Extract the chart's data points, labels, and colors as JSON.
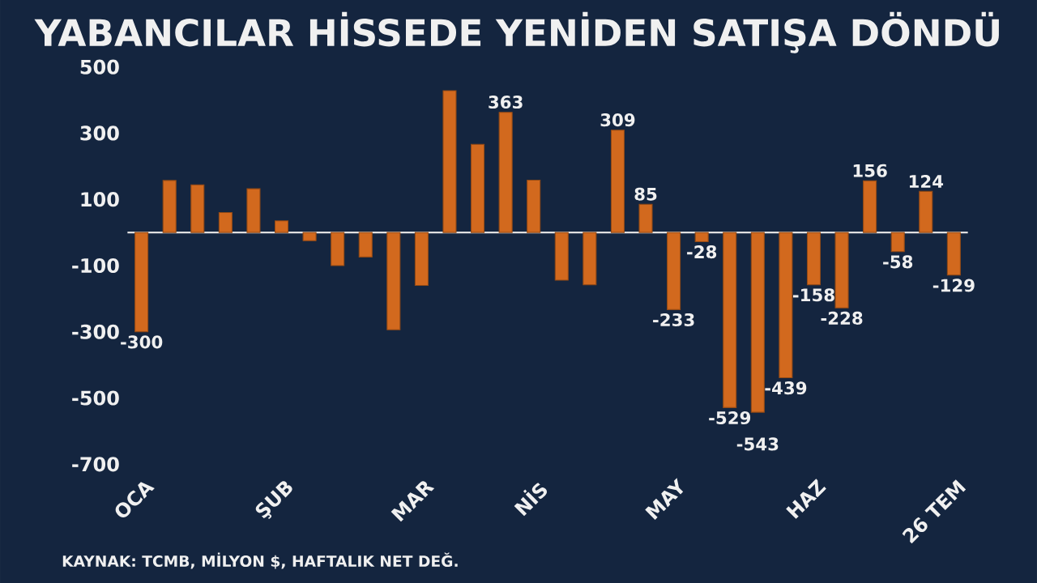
{
  "chart_data": {
    "type": "bar",
    "title": "YABANCILAR HİSSEDE YENİDEN SATIŞA DÖNDÜ",
    "categories": [
      "OCA",
      null,
      null,
      null,
      null,
      "ŞUB",
      null,
      null,
      null,
      null,
      "MAR",
      null,
      null,
      null,
      "NİS",
      null,
      null,
      null,
      null,
      "MAY",
      null,
      null,
      null,
      null,
      "HAZ",
      null,
      null,
      null,
      null,
      "26 TEM"
    ],
    "values": [
      -300,
      157,
      144,
      60,
      132,
      35,
      -25,
      -100,
      -74,
      -294,
      -160,
      428,
      266,
      363,
      158,
      -144,
      -158,
      309,
      85,
      -233,
      -28,
      -529,
      -543,
      -439,
      -158,
      -228,
      156,
      -58,
      124,
      -129
    ],
    "value_labels": [
      "-300",
      null,
      null,
      null,
      null,
      null,
      null,
      null,
      null,
      null,
      null,
      null,
      null,
      "363",
      null,
      null,
      null,
      "309",
      "85",
      "-233",
      "-28",
      "-529",
      "-543",
      "-439",
      "-158",
      "-228",
      "156",
      "-58",
      "124",
      "-129"
    ],
    "color": "#d2691e",
    "ylim": [
      -700,
      500
    ],
    "yticks": [
      -700,
      -500,
      -300,
      -100,
      100,
      300,
      500
    ],
    "grid": false,
    "annotations": [
      "KAYNAK: TCMB, MİLYON $, HAFTALIK NET DEĞ."
    ]
  }
}
